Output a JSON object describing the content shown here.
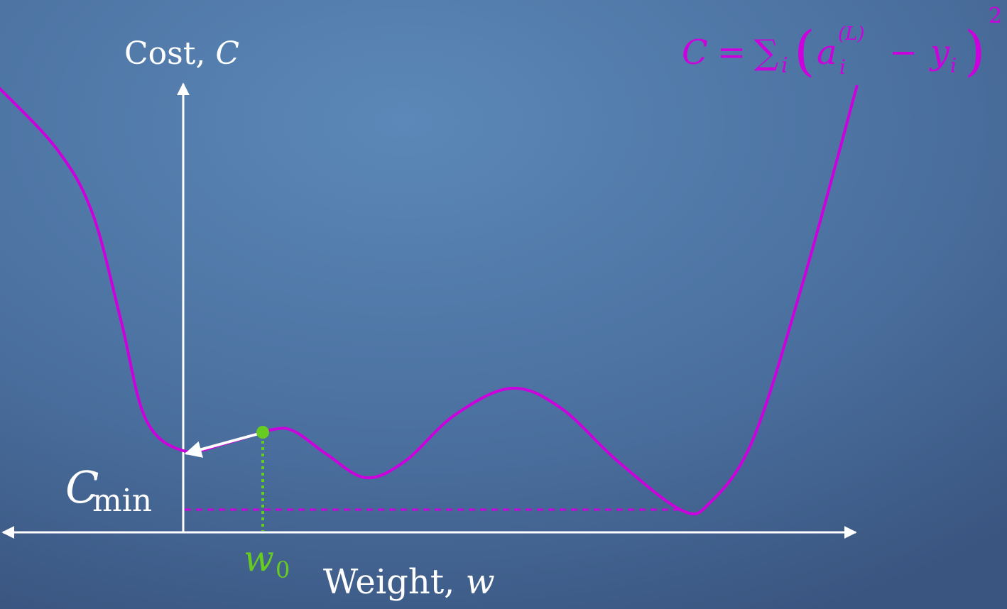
{
  "y_axis_label": {
    "text": "Cost,",
    "var": "C"
  },
  "x_axis_label": {
    "text": "Weight,",
    "var": "w"
  },
  "min_label": {
    "var": "C",
    "sub": "min"
  },
  "start_label": {
    "var": "w",
    "sub": "0"
  },
  "formula": {
    "lhs": "C",
    "eq": "=",
    "sum": "∑",
    "sum_sub": "i",
    "open": "(",
    "a": "a",
    "a_sup": "(L)",
    "a_sub": "i",
    "minus": "−",
    "y": "y",
    "y_sub": "i",
    "close": ")",
    "power": "2"
  }
}
